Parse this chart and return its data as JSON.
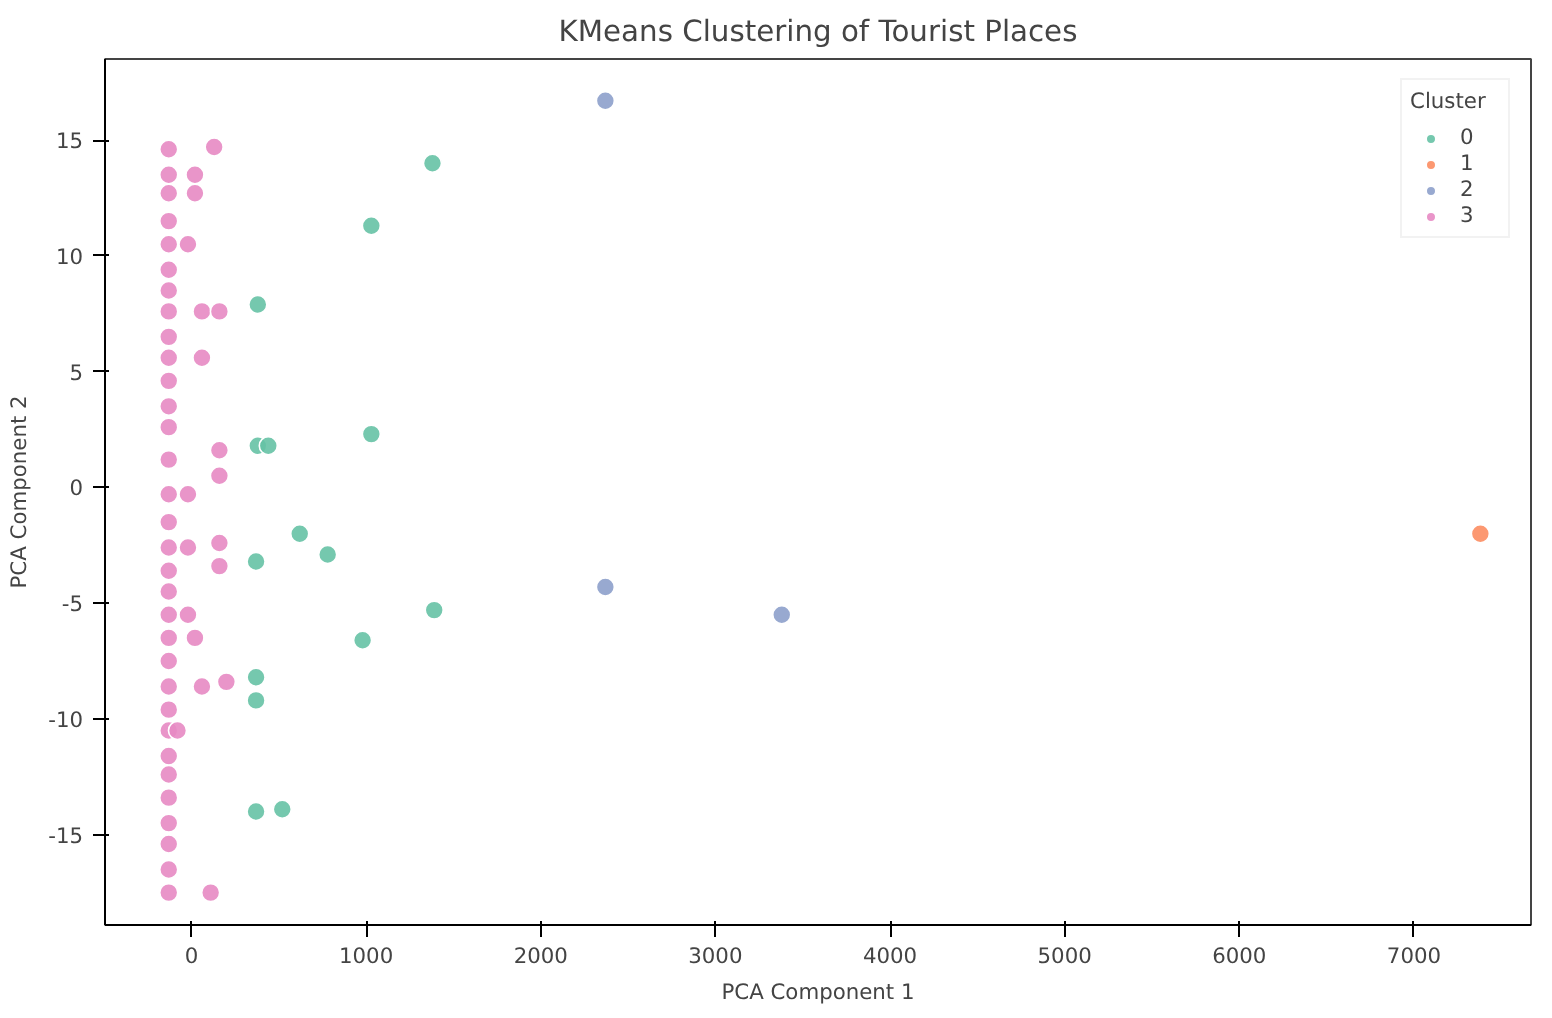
{
  "chart_data": {
    "type": "scatter",
    "title": "KMeans Clustering of Tourist Places",
    "xlabel": "PCA Component 1",
    "ylabel": "PCA Component 2",
    "legend_title": "Cluster",
    "legend": "top right",
    "grid": false,
    "marker": "circle",
    "xlim": [
      -495,
      7670
    ],
    "ylim": [
      -18.9,
      18.5
    ],
    "xticks": [
      0,
      1000,
      2000,
      3000,
      4000,
      5000,
      6000,
      7000
    ],
    "yticks": [
      -15,
      -10,
      -5,
      0,
      5,
      10,
      15
    ],
    "series": [
      {
        "name": "0",
        "color": "#66c2a5",
        "x": [
          1380,
          1030,
          380,
          380,
          440,
          1030,
          620,
          780,
          370,
          1390,
          980,
          370,
          370,
          370,
          520
        ],
        "values": [
          14.0,
          11.3,
          7.9,
          1.8,
          1.8,
          2.3,
          -2.0,
          -2.9,
          -3.2,
          -5.3,
          -6.6,
          -8.2,
          -9.2,
          -14.0,
          -13.9
        ]
      },
      {
        "name": "1",
        "color": "#fc8d62",
        "x": [
          7380
        ],
        "values": [
          -2.0
        ]
      },
      {
        "name": "2",
        "color": "#8da0cb",
        "x": [
          2370,
          2370,
          3380
        ],
        "values": [
          16.7,
          -4.3,
          -5.5
        ]
      },
      {
        "name": "3",
        "color": "#e78ac3",
        "x": [
          -130,
          130,
          -130,
          20,
          -130,
          20,
          -130,
          -130,
          -20,
          -130,
          -130,
          -130,
          60,
          160,
          -130,
          -130,
          60,
          -130,
          -130,
          -130,
          -130,
          160,
          160,
          -130,
          -130,
          -20,
          -130,
          -130,
          -20,
          160,
          160,
          -130,
          -130,
          -130,
          -20,
          -130,
          20,
          -130,
          -130,
          60,
          200,
          -130,
          -130,
          -80,
          -130,
          -130,
          -130,
          -130,
          -130,
          -130,
          110
        ],
        "values": [
          14.6,
          14.7,
          13.5,
          13.5,
          12.7,
          12.7,
          11.5,
          10.5,
          10.5,
          9.4,
          8.5,
          7.6,
          7.6,
          7.6,
          6.5,
          5.6,
          5.6,
          4.6,
          3.5,
          2.6,
          1.2,
          1.6,
          0.5,
          -0.3,
          -1.5,
          -0.3,
          -2.6,
          -3.6,
          -2.6,
          -2.4,
          -3.4,
          -4.5,
          -5.5,
          -6.5,
          -5.5,
          -7.5,
          -6.5,
          -8.6,
          -9.6,
          -8.6,
          -8.4,
          -10.5,
          -11.6,
          -10.5,
          -12.4,
          -13.4,
          -14.5,
          -15.4,
          -16.5,
          -17.5,
          -17.5
        ]
      }
    ]
  }
}
